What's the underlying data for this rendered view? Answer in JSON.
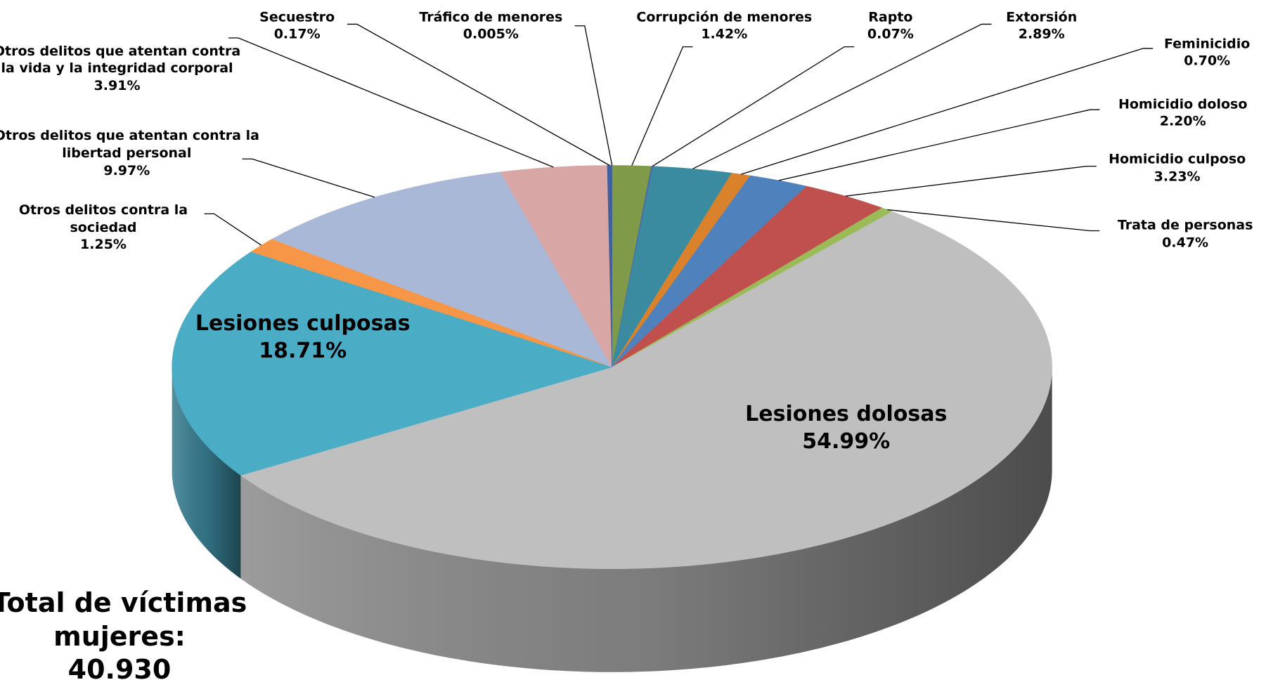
{
  "chart_data": {
    "type": "pie3d",
    "categories": [
      "Tráfico de menores",
      "Corrupción de menores",
      "Rapto",
      "Extorsión",
      "Feminicidio",
      "Homicidio doloso",
      "Homicidio culposo",
      "Trata de personas",
      "Lesiones dolosas",
      "Lesiones culposas",
      "Otros delitos contra la sociedad",
      "Otros delitos que atentan contra la libertad personal",
      "Otros delitos que atentan contra la vida y la integridad corporal",
      "Secuestro"
    ],
    "values": [
      0.005,
      1.42,
      0.07,
      2.89,
      0.7,
      2.2,
      3.23,
      0.47,
      54.99,
      18.71,
      1.25,
      9.97,
      3.91,
      0.17
    ],
    "value_labels": [
      "0.005%",
      "1.42%",
      "0.07%",
      "2.89%",
      "0.70%",
      "2.20%",
      "3.23%",
      "0.47%",
      "54.99%",
      "18.71%",
      "1.25%",
      "9.97%",
      "3.91%",
      "0.17%"
    ],
    "colors": [
      "#4a6fa5",
      "#7f9a48",
      "#4a6fa5",
      "#3b8ba0",
      "#d9822b",
      "#4f81bd",
      "#c0504d",
      "#9bbb59",
      "#bfbfbf",
      "#4bacc6",
      "#f79646",
      "#a9b8d6",
      "#d9a6a6",
      "#3f5f9f"
    ],
    "annotation": "Total de víctimas mujeres:",
    "total": "40.930"
  }
}
